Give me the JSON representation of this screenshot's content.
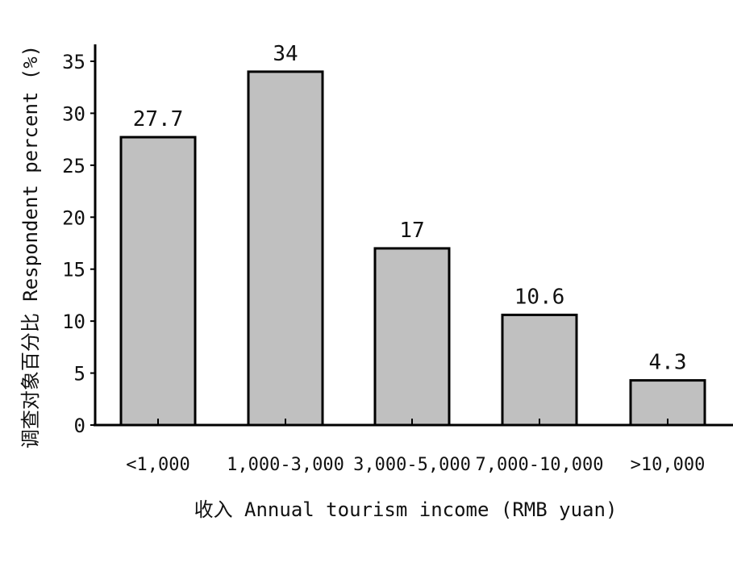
{
  "chart_data": {
    "type": "bar",
    "categories": [
      "<1,000",
      "1,000-3,000",
      "3,000-5,000",
      "7,000-10,000",
      ">10,000"
    ],
    "values": [
      27.7,
      34,
      17,
      10.6,
      4.3
    ],
    "data_labels": [
      "27.7",
      "34",
      "17",
      "10.6",
      "4.3"
    ],
    "xlabel": "收入 Annual tourism income (RMB yuan)",
    "ylabel": "调查对象百分比 Respondent percent (%)",
    "ylim": [
      0,
      35
    ],
    "yticks": [
      0,
      5,
      10,
      15,
      20,
      25,
      30,
      35
    ],
    "grid": false,
    "bar_color": "#c0c0c0",
    "bar_edge_color": "#000000"
  }
}
